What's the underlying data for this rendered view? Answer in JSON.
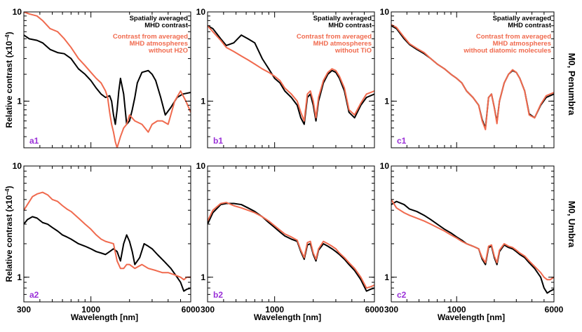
{
  "colors": {
    "black": "#000000",
    "orange": "#f06a4e",
    "tag": "#9a30d8"
  },
  "figure": {
    "xlabel": "Wavelength [nm]",
    "ylabel_text": "Relative contrast (x10",
    "ylabel_exp": "−4",
    "ylabel_close": ")",
    "row_labels": [
      "M0, Penumbra",
      "M0, Umbra"
    ],
    "xticks": [
      "300",
      "1000",
      "6000"
    ],
    "yticks": [
      "1",
      "10"
    ]
  },
  "legends": [
    {
      "black": [
        "Spatially averaged",
        "MHD contrast"
      ],
      "orange": [
        "Contrast from averaged",
        "MHD atmospheres",
        "without H2O"
      ]
    },
    {
      "black": [
        "Spatially averaged",
        "MHD contrast"
      ],
      "orange": [
        "Contrast from averaged",
        "MHD atmospheres",
        "without TiO"
      ]
    },
    {
      "black": [
        "Spatially averaged",
        "MHD contrast"
      ],
      "orange": [
        "Contrast from averaged",
        "MHD atmospheres",
        "without diatomic molecules"
      ]
    }
  ],
  "chart_data": [
    {
      "panel": "a1",
      "type": "line",
      "xscale": "log",
      "yscale": "log",
      "xlim": [
        300,
        6000
      ],
      "ylim": [
        0.3,
        10
      ],
      "series": [
        {
          "name": "Spatially averaged MHD contrast",
          "color": "#000000",
          "x": [
            300,
            330,
            380,
            420,
            480,
            550,
            620,
            700,
            800,
            900,
            1000,
            1100,
            1200,
            1300,
            1400,
            1450,
            1500,
            1550,
            1600,
            1650,
            1700,
            1800,
            1900,
            2000,
            2100,
            2200,
            2300,
            2500,
            2800,
            3000,
            3200,
            3500,
            3800,
            4200,
            4700,
            5200,
            6000
          ],
          "y": [
            5.5,
            5.0,
            4.8,
            4.5,
            3.8,
            3.5,
            3.4,
            3.0,
            2.3,
            2.0,
            1.7,
            1.4,
            1.2,
            1.1,
            1.15,
            1.0,
            0.7,
            0.55,
            0.8,
            1.3,
            1.8,
            1.2,
            0.55,
            0.6,
            0.8,
            1.1,
            1.6,
            2.1,
            2.2,
            2.0,
            1.7,
            1.1,
            0.7,
            0.85,
            1.1,
            1.2,
            1.25
          ]
        },
        {
          "name": "Contrast from averaged MHD atmospheres without H2O",
          "color": "#f06a4e",
          "x": [
            300,
            330,
            380,
            420,
            480,
            550,
            620,
            700,
            800,
            900,
            1000,
            1100,
            1200,
            1300,
            1350,
            1400,
            1450,
            1500,
            1550,
            1600,
            1700,
            1800,
            1900,
            2000,
            2200,
            2500,
            2800,
            3000,
            3300,
            3600,
            4000,
            4500,
            5000,
            5500,
            6000
          ],
          "y": [
            10.0,
            9.5,
            9.0,
            8.0,
            6.5,
            6.0,
            5.0,
            4.0,
            3.0,
            2.5,
            2.1,
            1.8,
            1.6,
            1.3,
            1.1,
            0.75,
            0.55,
            0.45,
            0.35,
            0.3,
            0.4,
            0.5,
            0.55,
            0.7,
            0.6,
            0.55,
            0.45,
            0.55,
            0.6,
            0.6,
            0.55,
            1.0,
            1.3,
            1.0,
            0.75
          ]
        }
      ]
    },
    {
      "panel": "b1",
      "type": "line",
      "xscale": "log",
      "yscale": "log",
      "xlim": [
        300,
        6000
      ],
      "ylim": [
        0.3,
        10
      ],
      "series": [
        {
          "name": "Spatially averaged MHD contrast",
          "color": "#000000",
          "x": [
            300,
            330,
            380,
            420,
            480,
            550,
            620,
            700,
            800,
            900,
            1000,
            1100,
            1200,
            1350,
            1500,
            1600,
            1700,
            1800,
            1900,
            2000,
            2100,
            2200,
            2400,
            2600,
            2800,
            3000,
            3200,
            3500,
            3800,
            4200,
            4700,
            5200,
            6000
          ],
          "y": [
            7.0,
            6.5,
            5.0,
            4.2,
            4.5,
            5.5,
            5.0,
            4.5,
            3.0,
            2.3,
            1.8,
            1.6,
            1.3,
            1.1,
            0.9,
            0.65,
            0.55,
            1.1,
            1.2,
            0.9,
            0.6,
            1.0,
            1.6,
            2.0,
            2.2,
            2.1,
            1.8,
            1.3,
            0.75,
            0.65,
            0.9,
            1.1,
            1.2
          ]
        },
        {
          "name": "Contrast from averaged MHD atmospheres without TiO",
          "color": "#f06a4e",
          "x": [
            300,
            330,
            380,
            420,
            480,
            550,
            620,
            700,
            800,
            900,
            1000,
            1100,
            1200,
            1350,
            1500,
            1600,
            1700,
            1800,
            1900,
            2000,
            2100,
            2200,
            2400,
            2600,
            2800,
            3000,
            3200,
            3500,
            3800,
            4200,
            4700,
            5200,
            6000
          ],
          "y": [
            7.0,
            6.0,
            4.8,
            4.0,
            3.6,
            3.2,
            2.9,
            2.6,
            2.3,
            2.1,
            1.9,
            1.7,
            1.4,
            1.2,
            1.0,
            0.75,
            0.6,
            1.2,
            1.3,
            1.0,
            0.65,
            1.1,
            1.7,
            2.1,
            2.3,
            2.2,
            1.9,
            1.4,
            0.8,
            0.7,
            0.95,
            1.2,
            1.3
          ]
        }
      ]
    },
    {
      "panel": "c1",
      "type": "line",
      "xscale": "log",
      "yscale": "log",
      "xlim": [
        300,
        6000
      ],
      "ylim": [
        0.3,
        10
      ],
      "series": [
        {
          "name": "Spatially averaged MHD contrast",
          "color": "#000000",
          "x": [
            300,
            330,
            380,
            420,
            480,
            550,
            620,
            700,
            800,
            900,
            1000,
            1100,
            1200,
            1350,
            1500,
            1600,
            1700,
            1800,
            1900,
            2000,
            2100,
            2200,
            2400,
            2600,
            2800,
            3000,
            3200,
            3500,
            3800,
            4200,
            4700,
            5200,
            6000
          ],
          "y": [
            7.0,
            6.5,
            5.0,
            4.3,
            3.8,
            3.4,
            3.0,
            2.6,
            2.3,
            2.0,
            1.8,
            1.6,
            1.3,
            1.1,
            0.9,
            0.62,
            0.5,
            1.1,
            1.2,
            0.85,
            0.58,
            1.0,
            1.6,
            2.0,
            2.2,
            2.1,
            1.8,
            1.3,
            0.72,
            0.65,
            0.9,
            1.1,
            1.2
          ]
        },
        {
          "name": "Contrast from averaged MHD atmospheres without diatomic molecules",
          "color": "#f06a4e",
          "x": [
            300,
            330,
            380,
            420,
            480,
            550,
            620,
            700,
            800,
            900,
            1000,
            1100,
            1200,
            1350,
            1500,
            1600,
            1700,
            1800,
            1900,
            2000,
            2100,
            2200,
            2400,
            2600,
            2800,
            3000,
            3200,
            3500,
            3800,
            4200,
            4700,
            5200,
            6000
          ],
          "y": [
            7.2,
            6.7,
            5.2,
            4.4,
            3.9,
            3.5,
            3.0,
            2.6,
            2.3,
            2.0,
            1.8,
            1.6,
            1.3,
            1.1,
            0.9,
            0.6,
            0.48,
            1.1,
            1.2,
            0.85,
            0.56,
            1.0,
            1.6,
            2.0,
            2.25,
            2.1,
            1.8,
            1.3,
            0.7,
            0.65,
            0.92,
            1.15,
            1.25
          ]
        }
      ]
    },
    {
      "panel": "a2",
      "type": "line",
      "xscale": "log",
      "yscale": "log",
      "xlim": [
        300,
        6000
      ],
      "ylim": [
        0.6,
        10
      ],
      "series": [
        {
          "name": "Spatially averaged MHD contrast",
          "color": "#000000",
          "x": [
            300,
            320,
            350,
            380,
            420,
            460,
            500,
            550,
            600,
            650,
            700,
            800,
            900,
            1000,
            1100,
            1200,
            1300,
            1400,
            1500,
            1600,
            1700,
            1800,
            1900,
            2000,
            2100,
            2200,
            2400,
            2600,
            2800,
            3000,
            3300,
            3700,
            4200,
            4700,
            5000,
            5300,
            5600,
            6000
          ],
          "y": [
            3.0,
            3.3,
            3.5,
            3.4,
            3.1,
            3.0,
            2.8,
            2.6,
            2.4,
            2.3,
            2.2,
            2.0,
            1.9,
            1.8,
            1.7,
            1.65,
            1.6,
            1.7,
            1.8,
            1.7,
            1.4,
            2.0,
            2.4,
            2.1,
            1.7,
            1.3,
            1.5,
            2.0,
            1.9,
            1.8,
            1.6,
            1.4,
            1.2,
            1.0,
            0.9,
            0.75,
            0.78,
            0.8
          ]
        },
        {
          "name": "Contrast from averaged MHD atmospheres without H2O",
          "color": "#f06a4e",
          "x": [
            300,
            320,
            350,
            380,
            420,
            460,
            500,
            550,
            600,
            650,
            700,
            800,
            900,
            1000,
            1100,
            1200,
            1300,
            1400,
            1500,
            1600,
            1700,
            1800,
            1900,
            2000,
            2200,
            2500,
            2800,
            3200,
            3600,
            4000,
            4500,
            5000,
            5300,
            5600,
            6000
          ],
          "y": [
            4.0,
            4.5,
            5.3,
            5.6,
            5.8,
            5.5,
            5.0,
            4.8,
            4.4,
            4.1,
            3.9,
            3.4,
            3.0,
            2.7,
            2.4,
            2.2,
            2.1,
            2.05,
            2.0,
            1.4,
            1.2,
            1.2,
            1.3,
            1.3,
            1.2,
            1.3,
            1.2,
            1.15,
            1.1,
            1.1,
            1.05,
            1.0,
            0.95,
            1.0,
            1.0
          ]
        }
      ]
    },
    {
      "panel": "b2",
      "type": "line",
      "xscale": "log",
      "yscale": "log",
      "xlim": [
        300,
        6000
      ],
      "ylim": [
        0.6,
        10
      ],
      "series": [
        {
          "name": "Spatially averaged MHD contrast",
          "color": "#000000",
          "x": [
            300,
            330,
            380,
            420,
            480,
            550,
            620,
            700,
            800,
            900,
            1000,
            1100,
            1200,
            1350,
            1500,
            1600,
            1700,
            1800,
            1900,
            2000,
            2100,
            2200,
            2400,
            2600,
            2800,
            3000,
            3200,
            3500,
            3800,
            4200,
            4700,
            5200,
            5600,
            6000
          ],
          "y": [
            3.0,
            3.8,
            4.5,
            4.6,
            4.6,
            4.5,
            4.2,
            3.9,
            3.5,
            3.1,
            2.8,
            2.55,
            2.35,
            2.2,
            2.1,
            1.7,
            1.45,
            1.95,
            2.0,
            1.6,
            1.4,
            1.75,
            2.0,
            1.9,
            1.8,
            1.7,
            1.6,
            1.45,
            1.3,
            1.15,
            0.95,
            0.75,
            0.78,
            0.8
          ]
        },
        {
          "name": "Contrast from averaged MHD atmospheres without TiO",
          "color": "#f06a4e",
          "x": [
            300,
            330,
            380,
            420,
            480,
            550,
            620,
            700,
            800,
            900,
            1000,
            1100,
            1200,
            1350,
            1500,
            1600,
            1700,
            1800,
            1900,
            2000,
            2100,
            2200,
            2400,
            2600,
            2800,
            3000,
            3200,
            3500,
            3800,
            4200,
            4700,
            5200,
            5600,
            6000
          ],
          "y": [
            3.2,
            4.0,
            4.6,
            4.7,
            4.4,
            4.2,
            4.0,
            3.8,
            3.5,
            3.2,
            2.9,
            2.65,
            2.45,
            2.3,
            2.15,
            1.75,
            1.5,
            2.05,
            2.1,
            1.65,
            1.45,
            1.8,
            2.1,
            2.0,
            1.9,
            1.8,
            1.65,
            1.5,
            1.35,
            1.2,
            1.0,
            0.8,
            0.82,
            0.85
          ]
        }
      ]
    },
    {
      "panel": "c2",
      "type": "line",
      "xscale": "log",
      "yscale": "log",
      "xlim": [
        300,
        6000
      ],
      "ylim": [
        0.6,
        10
      ],
      "series": [
        {
          "name": "Spatially averaged MHD contrast",
          "color": "#000000",
          "x": [
            300,
            330,
            380,
            420,
            480,
            550,
            620,
            700,
            800,
            900,
            1000,
            1100,
            1200,
            1350,
            1500,
            1600,
            1700,
            1800,
            1900,
            2000,
            2100,
            2200,
            2400,
            2600,
            2800,
            3000,
            3200,
            3500,
            3800,
            4200,
            4700,
            5000,
            5300,
            5600,
            6000
          ],
          "y": [
            4.5,
            4.8,
            4.5,
            4.1,
            3.9,
            3.6,
            3.3,
            3.0,
            2.7,
            2.5,
            2.3,
            2.15,
            2.0,
            1.9,
            1.8,
            1.45,
            1.3,
            1.85,
            1.9,
            1.5,
            1.3,
            1.7,
            1.95,
            1.85,
            1.8,
            1.7,
            1.6,
            1.5,
            1.35,
            1.2,
            1.0,
            0.8,
            0.72,
            0.75,
            0.78
          ]
        },
        {
          "name": "Contrast from averaged MHD atmospheres without diatomic molecules",
          "color": "#f06a4e",
          "x": [
            300,
            330,
            380,
            420,
            480,
            550,
            620,
            700,
            800,
            900,
            1000,
            1100,
            1200,
            1350,
            1500,
            1600,
            1700,
            1800,
            1900,
            2000,
            2100,
            2200,
            2400,
            2600,
            2800,
            3000,
            3200,
            3500,
            3800,
            4200,
            4700,
            5000,
            5300,
            5600,
            6000
          ],
          "y": [
            5.0,
            4.2,
            3.8,
            3.6,
            3.4,
            3.2,
            3.0,
            2.8,
            2.6,
            2.4,
            2.25,
            2.1,
            2.0,
            1.9,
            1.8,
            1.5,
            1.35,
            1.9,
            1.95,
            1.55,
            1.35,
            1.75,
            2.0,
            1.9,
            1.85,
            1.75,
            1.65,
            1.55,
            1.4,
            1.25,
            1.1,
            1.0,
            0.95,
            0.95,
            1.0
          ]
        }
      ]
    }
  ]
}
